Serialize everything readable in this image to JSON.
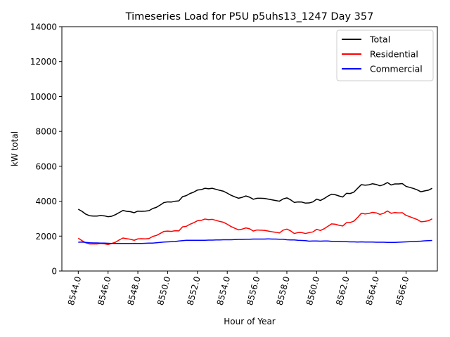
{
  "chart_data": {
    "type": "line",
    "title": "Timeseries Load for P5U p5uhs13_1247  Day 357",
    "xlabel": "Hour of Year",
    "ylabel": "kW total",
    "xlim": [
      8542.9,
      8568.1
    ],
    "ylim": [
      0,
      14000
    ],
    "x_ticks": [
      8544,
      8546,
      8548,
      8550,
      8552,
      8554,
      8556,
      8558,
      8560,
      8562,
      8564,
      8566
    ],
    "x_tick_labels": [
      "8544.0",
      "8546.0",
      "8548.0",
      "8550.0",
      "8552.0",
      "8554.0",
      "8556.0",
      "8558.0",
      "8560.0",
      "8562.0",
      "8564.0",
      "8566.0"
    ],
    "y_ticks": [
      0,
      2000,
      4000,
      6000,
      8000,
      10000,
      12000,
      14000
    ],
    "y_tick_labels": [
      "0",
      "2000",
      "4000",
      "6000",
      "8000",
      "10000",
      "12000",
      "14000"
    ],
    "legend_position": "top-right",
    "x_start": 8544,
    "x_step": 0.25,
    "series": [
      {
        "name": "Total",
        "color": "#000000",
        "values": [
          3540,
          3420,
          3260,
          3170,
          3150,
          3150,
          3180,
          3160,
          3110,
          3140,
          3230,
          3350,
          3470,
          3420,
          3400,
          3340,
          3430,
          3420,
          3430,
          3460,
          3580,
          3650,
          3780,
          3920,
          3960,
          3950,
          4000,
          4020,
          4260,
          4320,
          4440,
          4520,
          4640,
          4660,
          4740,
          4710,
          4740,
          4680,
          4620,
          4570,
          4460,
          4340,
          4250,
          4170,
          4220,
          4300,
          4230,
          4110,
          4170,
          4170,
          4160,
          4120,
          4080,
          4040,
          4000,
          4130,
          4190,
          4080,
          3930,
          3960,
          3950,
          3890,
          3900,
          3960,
          4120,
          4040,
          4150,
          4290,
          4400,
          4370,
          4300,
          4240,
          4450,
          4440,
          4520,
          4740,
          4950,
          4920,
          4940,
          5000,
          4960,
          4880,
          4950,
          5070,
          4930,
          4990,
          4990,
          5010,
          4850,
          4790,
          4730,
          4650,
          4540,
          4590,
          4630,
          4740
        ]
      },
      {
        "name": "Residential",
        "color": "#ff0000",
        "values": [
          1880,
          1740,
          1620,
          1550,
          1550,
          1550,
          1580,
          1560,
          1520,
          1580,
          1650,
          1780,
          1890,
          1850,
          1820,
          1760,
          1840,
          1850,
          1840,
          1860,
          1980,
          2040,
          2150,
          2270,
          2290,
          2270,
          2310,
          2300,
          2530,
          2560,
          2680,
          2770,
          2880,
          2900,
          2980,
          2940,
          2960,
          2900,
          2840,
          2790,
          2680,
          2550,
          2450,
          2360,
          2400,
          2470,
          2420,
          2290,
          2350,
          2340,
          2330,
          2290,
          2250,
          2220,
          2180,
          2340,
          2400,
          2300,
          2150,
          2200,
          2200,
          2150,
          2200,
          2240,
          2390,
          2320,
          2420,
          2560,
          2700,
          2680,
          2620,
          2580,
          2770,
          2780,
          2860,
          3070,
          3310,
          3270,
          3300,
          3360,
          3330,
          3240,
          3310,
          3440,
          3310,
          3350,
          3330,
          3340,
          3190,
          3110,
          3030,
          2950,
          2820,
          2840,
          2880,
          2990
        ]
      },
      {
        "name": "Commercial",
        "color": "#0000ff",
        "values": [
          1650,
          1660,
          1640,
          1620,
          1610,
          1610,
          1600,
          1600,
          1590,
          1580,
          1580,
          1580,
          1580,
          1580,
          1580,
          1580,
          1580,
          1580,
          1590,
          1600,
          1600,
          1620,
          1640,
          1660,
          1670,
          1680,
          1690,
          1720,
          1740,
          1760,
          1760,
          1760,
          1760,
          1760,
          1760,
          1770,
          1770,
          1780,
          1780,
          1790,
          1790,
          1790,
          1800,
          1810,
          1810,
          1820,
          1820,
          1830,
          1830,
          1830,
          1830,
          1840,
          1830,
          1830,
          1820,
          1820,
          1790,
          1780,
          1780,
          1760,
          1750,
          1740,
          1710,
          1720,
          1720,
          1710,
          1720,
          1720,
          1700,
          1700,
          1700,
          1680,
          1680,
          1670,
          1670,
          1660,
          1670,
          1660,
          1660,
          1660,
          1650,
          1650,
          1650,
          1640,
          1640,
          1640,
          1650,
          1660,
          1670,
          1680,
          1690,
          1700,
          1710,
          1730,
          1740,
          1750
        ]
      }
    ]
  }
}
